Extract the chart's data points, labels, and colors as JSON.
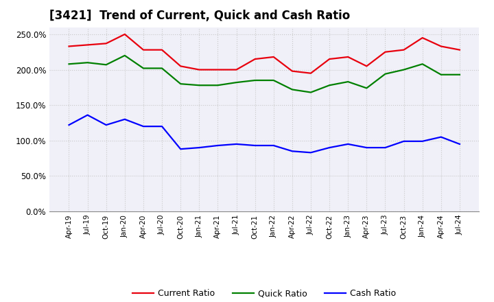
{
  "title": "[3421]  Trend of Current, Quick and Cash Ratio",
  "x_labels": [
    "Apr-19",
    "Jul-19",
    "Oct-19",
    "Jan-20",
    "Apr-20",
    "Jul-20",
    "Oct-20",
    "Jan-21",
    "Apr-21",
    "Jul-21",
    "Oct-21",
    "Jan-22",
    "Apr-22",
    "Jul-22",
    "Oct-22",
    "Jan-23",
    "Apr-23",
    "Jul-23",
    "Oct-23",
    "Jan-24",
    "Apr-24",
    "Jul-24"
  ],
  "current_ratio": [
    233,
    235,
    237,
    250,
    228,
    228,
    205,
    200,
    200,
    200,
    215,
    218,
    198,
    195,
    215,
    218,
    205,
    225,
    228,
    245,
    233,
    228
  ],
  "quick_ratio": [
    208,
    210,
    207,
    220,
    202,
    202,
    180,
    178,
    178,
    182,
    185,
    185,
    172,
    168,
    178,
    183,
    174,
    194,
    200,
    208,
    193,
    193
  ],
  "cash_ratio": [
    122,
    136,
    122,
    130,
    120,
    120,
    88,
    90,
    93,
    95,
    93,
    93,
    85,
    83,
    90,
    95,
    90,
    90,
    99,
    99,
    105,
    95
  ],
  "current_color": "#e8000d",
  "quick_color": "#008000",
  "cash_color": "#0000ff",
  "ylim": [
    0,
    260
  ],
  "yticks": [
    0,
    50,
    100,
    150,
    200,
    250
  ],
  "background_color": "#ffffff",
  "plot_bg_color": "#f0f0f8",
  "grid_color": "#c8c8c8",
  "legend_labels": [
    "Current Ratio",
    "Quick Ratio",
    "Cash Ratio"
  ],
  "title_fontsize": 12,
  "line_width": 1.6
}
